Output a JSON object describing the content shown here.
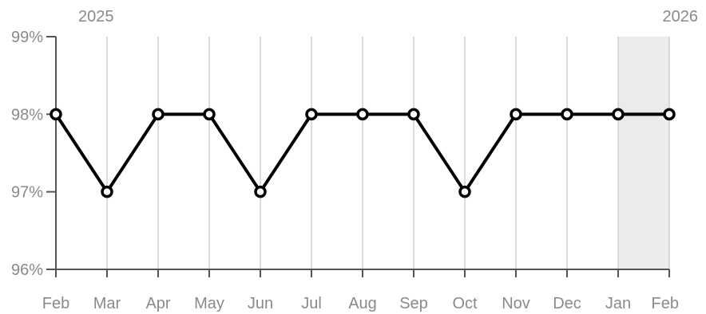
{
  "chart_data": {
    "type": "line",
    "title": "",
    "xlabel": "",
    "ylabel": "",
    "x": [
      "Feb",
      "Mar",
      "Apr",
      "May",
      "Jun",
      "Jul",
      "Aug",
      "Sep",
      "Oct",
      "Nov",
      "Dec",
      "Jan",
      "Feb"
    ],
    "x_tick_labels": [
      "Feb",
      "Mar",
      "Apr",
      "May",
      "Jun",
      "Jul",
      "Aug",
      "Sep",
      "Oct",
      "Nov",
      "Dec",
      "Jan",
      "Feb"
    ],
    "year_labels": [
      {
        "label": "2025",
        "at_index": 0
      },
      {
        "label": "2026",
        "at_index": 12
      }
    ],
    "series": [
      {
        "values": [
          98,
          97,
          98,
          98,
          97,
          98,
          98,
          98,
          97,
          98,
          98,
          98,
          98
        ]
      }
    ],
    "ylim": [
      96,
      99
    ],
    "y_ticks": [
      96,
      97,
      98,
      99
    ],
    "y_tick_labels": [
      "96%",
      "97%",
      "98%",
      "99%"
    ],
    "grid": "vertical",
    "shaded_period": {
      "from_index": 11,
      "to_index": 12
    },
    "colors": {
      "line": "#000000",
      "marker_fill": "#ffffff",
      "grid": "#d0d0d0",
      "axis": "#555555",
      "label": "#8a8a8a",
      "shade": "#ebebeb"
    }
  }
}
